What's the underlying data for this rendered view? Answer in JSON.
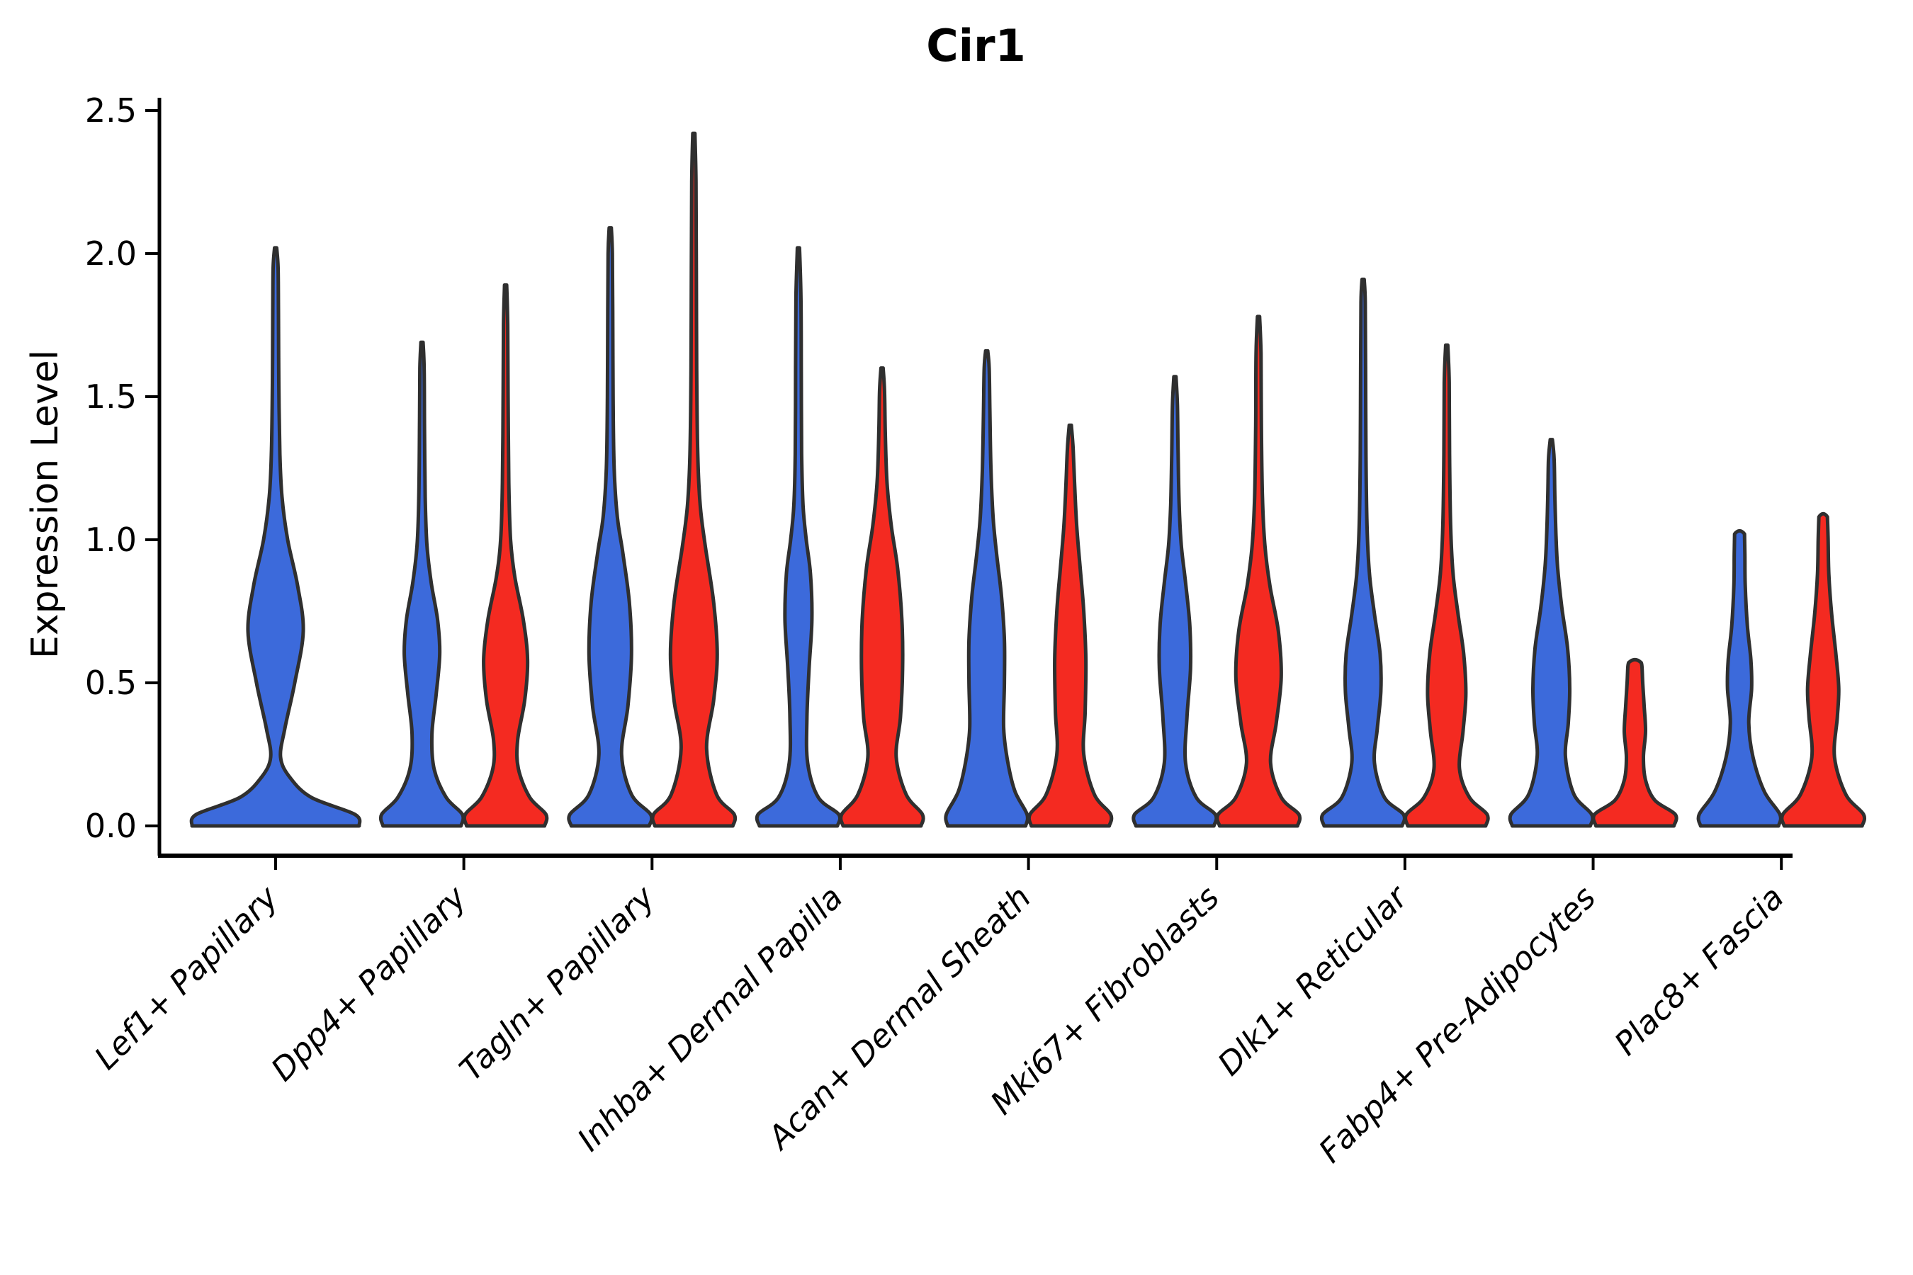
{
  "figure": {
    "background": "#ffffff"
  },
  "chart_data": {
    "type": "violin",
    "title": "Cir1",
    "ylabel": "Expression Level",
    "xlabel": "",
    "ylim": [
      -0.1,
      2.55
    ],
    "yticks": [
      "0.0",
      "0.5",
      "1.0",
      "1.5",
      "2.0",
      "2.5"
    ],
    "ytick_values": [
      0.0,
      0.5,
      1.0,
      1.5,
      2.0,
      2.5
    ],
    "grid": false,
    "legend": "none",
    "categories": [
      "Lef1+ Papillary",
      "Dpp4+ Papillary",
      "Tagln+ Papillary",
      "Inhba+ Dermal Papilla",
      "Acan+ Dermal Sheath",
      "Mki67+ Fibroblasts",
      "Dlk1+ Reticular",
      "Fabp4+ Pre-Adipocytes",
      "Plac8+ Fascia"
    ],
    "series_colors": {
      "blue": "#3C6ADB",
      "red": "#F42A21"
    },
    "outline_color": "#2F2F2F",
    "axis_color": "#000000",
    "violins": [
      {
        "category_index": 0,
        "series": "blue",
        "offset": 0,
        "max": 2.02,
        "flat_top": false,
        "profile": [
          [
            0,
            118
          ],
          [
            0.04,
            112
          ],
          [
            0.1,
            50
          ],
          [
            0.17,
            20
          ],
          [
            0.24,
            7
          ],
          [
            0.34,
            13
          ],
          [
            0.5,
            27
          ],
          [
            0.68,
            39
          ],
          [
            0.84,
            31
          ],
          [
            1.0,
            17
          ],
          [
            1.15,
            9
          ],
          [
            1.3,
            6
          ],
          [
            1.55,
            4.5
          ],
          [
            1.8,
            4
          ],
          [
            1.95,
            3.5
          ],
          [
            2.02,
            1.5
          ]
        ]
      },
      {
        "category_index": 1,
        "series": "blue",
        "offset": -59,
        "max": 1.69,
        "flat_top": false,
        "profile": [
          [
            0,
            55
          ],
          [
            0.04,
            57
          ],
          [
            0.1,
            34
          ],
          [
            0.2,
            17
          ],
          [
            0.32,
            14
          ],
          [
            0.46,
            20
          ],
          [
            0.6,
            25
          ],
          [
            0.72,
            22
          ],
          [
            0.85,
            13
          ],
          [
            0.98,
            7
          ],
          [
            1.15,
            4.5
          ],
          [
            1.4,
            3.5
          ],
          [
            1.6,
            3
          ],
          [
            1.69,
            1.5
          ]
        ]
      },
      {
        "category_index": 1,
        "series": "red",
        "offset": 59,
        "max": 1.89,
        "flat_top": false,
        "profile": [
          [
            0,
            55
          ],
          [
            0.04,
            57
          ],
          [
            0.1,
            34
          ],
          [
            0.2,
            18
          ],
          [
            0.3,
            17
          ],
          [
            0.44,
            27
          ],
          [
            0.58,
            31
          ],
          [
            0.72,
            25
          ],
          [
            0.87,
            13
          ],
          [
            1.0,
            7
          ],
          [
            1.2,
            4.5
          ],
          [
            1.5,
            3.5
          ],
          [
            1.75,
            3
          ],
          [
            1.89,
            1.5
          ]
        ]
      },
      {
        "category_index": 2,
        "series": "blue",
        "offset": -59,
        "max": 2.09,
        "flat_top": false,
        "profile": [
          [
            0,
            55
          ],
          [
            0.04,
            57
          ],
          [
            0.11,
            30
          ],
          [
            0.25,
            16
          ],
          [
            0.42,
            25
          ],
          [
            0.6,
            30
          ],
          [
            0.78,
            27
          ],
          [
            0.95,
            18
          ],
          [
            1.08,
            10
          ],
          [
            1.25,
            5.5
          ],
          [
            1.5,
            4
          ],
          [
            1.8,
            3.5
          ],
          [
            2.0,
            3
          ],
          [
            2.09,
            1.5
          ]
        ]
      },
      {
        "category_index": 2,
        "series": "red",
        "offset": 59,
        "max": 2.42,
        "flat_top": false,
        "profile": [
          [
            0,
            55
          ],
          [
            0.04,
            57
          ],
          [
            0.11,
            32
          ],
          [
            0.27,
            18
          ],
          [
            0.44,
            28
          ],
          [
            0.6,
            33
          ],
          [
            0.78,
            28
          ],
          [
            0.98,
            16
          ],
          [
            1.12,
            9
          ],
          [
            1.3,
            5.5
          ],
          [
            1.6,
            4
          ],
          [
            1.95,
            3.5
          ],
          [
            2.25,
            3
          ],
          [
            2.42,
            1.5
          ]
        ]
      },
      {
        "category_index": 3,
        "series": "blue",
        "offset": -59,
        "max": 2.02,
        "flat_top": false,
        "profile": [
          [
            0,
            55
          ],
          [
            0.04,
            57
          ],
          [
            0.1,
            28
          ],
          [
            0.22,
            13
          ],
          [
            0.38,
            12
          ],
          [
            0.55,
            15
          ],
          [
            0.72,
            19
          ],
          [
            0.88,
            17
          ],
          [
            1.0,
            11
          ],
          [
            1.12,
            6.5
          ],
          [
            1.3,
            4.5
          ],
          [
            1.6,
            4
          ],
          [
            1.85,
            3.5
          ],
          [
            2.02,
            1.5
          ]
        ]
      },
      {
        "category_index": 3,
        "series": "red",
        "offset": 59,
        "max": 1.6,
        "flat_top": false,
        "profile": [
          [
            0,
            55
          ],
          [
            0.04,
            57
          ],
          [
            0.11,
            34
          ],
          [
            0.24,
            20
          ],
          [
            0.38,
            26
          ],
          [
            0.55,
            29
          ],
          [
            0.72,
            28
          ],
          [
            0.9,
            22
          ],
          [
            1.05,
            13
          ],
          [
            1.2,
            7
          ],
          [
            1.38,
            4.5
          ],
          [
            1.52,
            3.5
          ],
          [
            1.6,
            1.5
          ]
        ]
      },
      {
        "category_index": 4,
        "series": "blue",
        "offset": -59,
        "max": 1.66,
        "flat_top": false,
        "profile": [
          [
            0,
            55
          ],
          [
            0.04,
            57
          ],
          [
            0.12,
            40
          ],
          [
            0.22,
            30
          ],
          [
            0.34,
            24
          ],
          [
            0.5,
            25
          ],
          [
            0.65,
            25
          ],
          [
            0.8,
            21
          ],
          [
            0.95,
            14
          ],
          [
            1.08,
            9
          ],
          [
            1.25,
            6
          ],
          [
            1.45,
            4.5
          ],
          [
            1.6,
            3.5
          ],
          [
            1.66,
            1.5
          ]
        ]
      },
      {
        "category_index": 4,
        "series": "red",
        "offset": 59,
        "max": 1.4,
        "flat_top": false,
        "profile": [
          [
            0,
            55
          ],
          [
            0.04,
            57
          ],
          [
            0.11,
            34
          ],
          [
            0.25,
            19
          ],
          [
            0.4,
            21
          ],
          [
            0.58,
            22
          ],
          [
            0.75,
            19
          ],
          [
            0.9,
            14
          ],
          [
            1.05,
            9
          ],
          [
            1.2,
            6
          ],
          [
            1.32,
            4
          ],
          [
            1.4,
            1.5
          ]
        ]
      },
      {
        "category_index": 5,
        "series": "blue",
        "offset": -59,
        "max": 1.57,
        "flat_top": false,
        "profile": [
          [
            0,
            55
          ],
          [
            0.04,
            57
          ],
          [
            0.1,
            30
          ],
          [
            0.22,
            15
          ],
          [
            0.38,
            17
          ],
          [
            0.55,
            22
          ],
          [
            0.7,
            21
          ],
          [
            0.85,
            15
          ],
          [
            0.98,
            9
          ],
          [
            1.12,
            6
          ],
          [
            1.3,
            4.5
          ],
          [
            1.47,
            3.5
          ],
          [
            1.57,
            1.5
          ]
        ]
      },
      {
        "category_index": 5,
        "series": "red",
        "offset": 59,
        "max": 1.78,
        "flat_top": false,
        "profile": [
          [
            0,
            55
          ],
          [
            0.04,
            57
          ],
          [
            0.1,
            32
          ],
          [
            0.22,
            17
          ],
          [
            0.36,
            25
          ],
          [
            0.52,
            32
          ],
          [
            0.68,
            28
          ],
          [
            0.84,
            16
          ],
          [
            0.98,
            9
          ],
          [
            1.15,
            5.5
          ],
          [
            1.4,
            4
          ],
          [
            1.65,
            3.5
          ],
          [
            1.78,
            1.5
          ]
        ]
      },
      {
        "category_index": 6,
        "series": "blue",
        "offset": -59,
        "max": 1.91,
        "flat_top": false,
        "profile": [
          [
            0,
            55
          ],
          [
            0.04,
            57
          ],
          [
            0.1,
            30
          ],
          [
            0.22,
            16
          ],
          [
            0.34,
            20
          ],
          [
            0.47,
            25
          ],
          [
            0.6,
            24
          ],
          [
            0.74,
            16
          ],
          [
            0.88,
            9
          ],
          [
            1.05,
            5.5
          ],
          [
            1.3,
            4
          ],
          [
            1.6,
            3.5
          ],
          [
            1.83,
            3
          ],
          [
            1.91,
            1.5
          ]
        ]
      },
      {
        "category_index": 6,
        "series": "red",
        "offset": 59,
        "max": 1.68,
        "flat_top": false,
        "profile": [
          [
            0,
            55
          ],
          [
            0.04,
            57
          ],
          [
            0.1,
            32
          ],
          [
            0.2,
            18
          ],
          [
            0.33,
            23
          ],
          [
            0.46,
            27
          ],
          [
            0.6,
            24
          ],
          [
            0.74,
            16
          ],
          [
            0.88,
            9
          ],
          [
            1.05,
            5.5
          ],
          [
            1.3,
            4
          ],
          [
            1.55,
            3.5
          ],
          [
            1.68,
            1.5
          ]
        ]
      },
      {
        "category_index": 7,
        "series": "blue",
        "offset": -59,
        "max": 1.35,
        "flat_top": false,
        "profile": [
          [
            0,
            55
          ],
          [
            0.04,
            57
          ],
          [
            0.11,
            32
          ],
          [
            0.24,
            20
          ],
          [
            0.36,
            24
          ],
          [
            0.48,
            26
          ],
          [
            0.62,
            23
          ],
          [
            0.76,
            15
          ],
          [
            0.9,
            9
          ],
          [
            1.02,
            6.5
          ],
          [
            1.15,
            5
          ],
          [
            1.28,
            4
          ],
          [
            1.35,
            1.5
          ]
        ]
      },
      {
        "category_index": 7,
        "series": "red",
        "offset": 59,
        "max": 0.57,
        "flat_top": true,
        "profile": [
          [
            0,
            55
          ],
          [
            0.04,
            57
          ],
          [
            0.09,
            28
          ],
          [
            0.16,
            15
          ],
          [
            0.24,
            12
          ],
          [
            0.33,
            15
          ],
          [
            0.42,
            13
          ],
          [
            0.5,
            11
          ],
          [
            0.555,
            10
          ],
          [
            0.57,
            9
          ]
        ]
      },
      {
        "category_index": 8,
        "series": "blue",
        "offset": -59,
        "max": 1.02,
        "flat_top": true,
        "profile": [
          [
            0,
            55
          ],
          [
            0.04,
            57
          ],
          [
            0.12,
            35
          ],
          [
            0.24,
            19
          ],
          [
            0.36,
            13
          ],
          [
            0.48,
            17
          ],
          [
            0.58,
            16
          ],
          [
            0.7,
            11
          ],
          [
            0.84,
            8
          ],
          [
            0.95,
            7.5
          ],
          [
            1.02,
            7
          ]
        ]
      },
      {
        "category_index": 8,
        "series": "red",
        "offset": 59,
        "max": 1.08,
        "flat_top": true,
        "profile": [
          [
            0,
            55
          ],
          [
            0.04,
            57
          ],
          [
            0.11,
            32
          ],
          [
            0.24,
            16
          ],
          [
            0.38,
            20
          ],
          [
            0.48,
            22
          ],
          [
            0.6,
            18
          ],
          [
            0.74,
            12
          ],
          [
            0.88,
            8
          ],
          [
            1.0,
            7
          ],
          [
            1.08,
            6
          ]
        ]
      }
    ]
  }
}
